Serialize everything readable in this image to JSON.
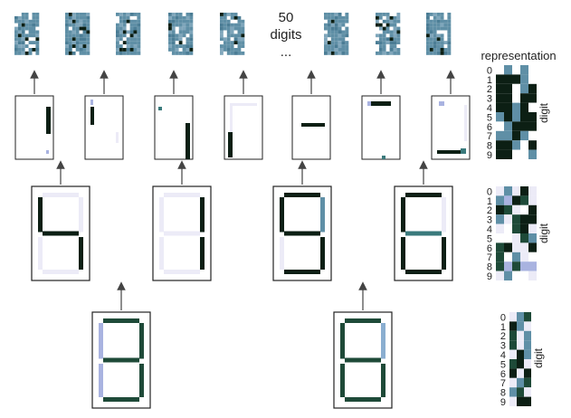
{
  "header": {
    "line1": "50",
    "line2": "digits",
    "line3": "..."
  },
  "representation_label": "representation",
  "axis_label": "digit",
  "digit_ticks": [
    "0",
    "1",
    "2",
    "3",
    "4",
    "5",
    "6",
    "7",
    "8",
    "9"
  ],
  "colors": {
    "dark": "#0c1f14",
    "slate_blue": "#5f8fa6",
    "teal": "#3a7a7c",
    "lavender": "#a9b3e0",
    "faint_lavender": "#ecebf7",
    "dark_green": "#1e4a38",
    "pale_blue": "#8aaed0"
  },
  "noise_patches_count": 8,
  "level1_sparse_panels": 7,
  "level2_seven_segment_panels": 4,
  "level3_seven_segment_panels": 2,
  "legend_matrices": 3
}
